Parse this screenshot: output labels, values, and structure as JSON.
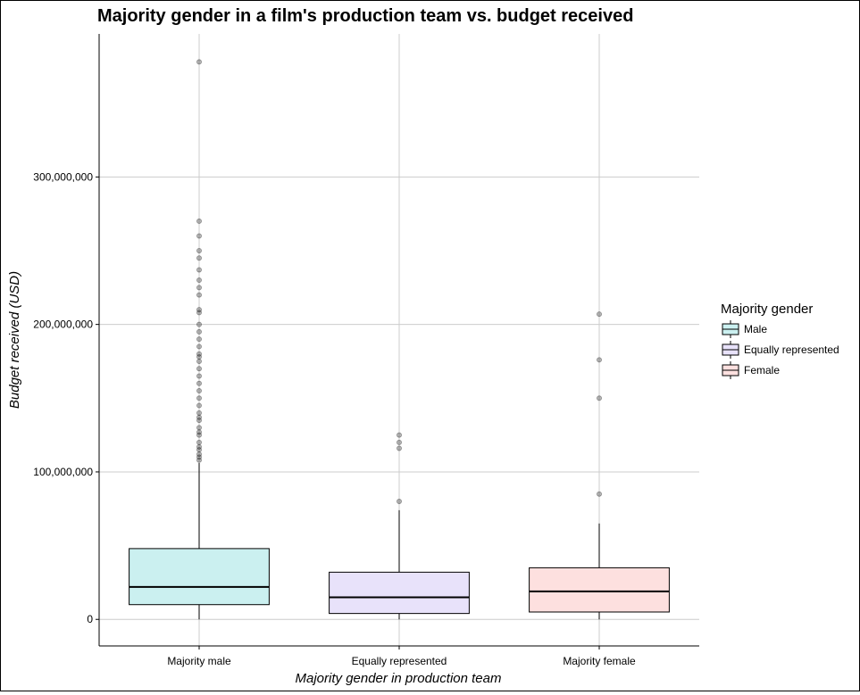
{
  "chart_data": {
    "type": "box",
    "title": "Majority gender in a film's production team vs. budget received",
    "xlabel": "Majority gender in production team",
    "ylabel": "Budget received (USD)",
    "ylim": [
      -18000000,
      397000000
    ],
    "yticks": [
      0,
      100000000,
      200000000,
      300000000
    ],
    "ytick_labels": [
      "0",
      "100,000,000",
      "200,000,000",
      "300,000,000"
    ],
    "grid": true,
    "legend": {
      "title": "Majority gender",
      "placement": "right",
      "entries": [
        {
          "label": "Male",
          "color": "#cbf0f0"
        },
        {
          "label": "Equally represented",
          "color": "#e8e2fa"
        },
        {
          "label": "Female",
          "color": "#fde0df"
        }
      ]
    },
    "categories": [
      "Majority male",
      "Equally represented",
      "Majority female"
    ],
    "series": [
      {
        "name": "Male",
        "color": "#cbf0f0",
        "whisker_low": 0,
        "q1": 10000000,
        "median": 22000000,
        "q3": 48000000,
        "whisker_high": 106000000,
        "outliers": [
          378000000,
          270000000,
          260000000,
          250000000,
          245000000,
          237000000,
          230000000,
          225000000,
          220000000,
          210000000,
          208000000,
          200000000,
          195000000,
          190000000,
          185000000,
          180000000,
          178000000,
          175000000,
          170000000,
          165000000,
          160000000,
          155000000,
          150000000,
          145000000,
          140000000,
          137000000,
          135000000,
          130000000,
          127000000,
          125000000,
          120000000,
          117000000,
          115000000,
          112000000,
          110000000,
          108000000
        ]
      },
      {
        "name": "Equally represented",
        "color": "#e8e2fa",
        "whisker_low": 0,
        "q1": 4000000,
        "median": 15000000,
        "q3": 32000000,
        "whisker_high": 74000000,
        "outliers": [
          125000000,
          120000000,
          116000000,
          80000000
        ]
      },
      {
        "name": "Female",
        "color": "#fde0df",
        "whisker_low": 0,
        "q1": 5000000,
        "median": 19000000,
        "q3": 35000000,
        "whisker_high": 65000000,
        "outliers": [
          207000000,
          176000000,
          150000000,
          85000000
        ]
      }
    ]
  }
}
